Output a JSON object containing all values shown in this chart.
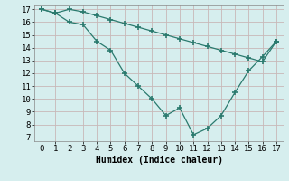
{
  "line1_x": [
    0,
    1,
    2,
    3,
    4,
    5,
    6,
    7,
    8,
    9,
    10,
    11,
    12,
    13,
    14,
    15,
    16,
    17
  ],
  "line1_y": [
    17.0,
    16.7,
    17.0,
    16.8,
    16.5,
    16.2,
    15.9,
    15.6,
    15.3,
    15.0,
    14.7,
    14.4,
    14.1,
    13.8,
    13.5,
    13.2,
    12.9,
    14.5
  ],
  "line2_x": [
    0,
    1,
    2,
    3,
    4,
    5,
    6,
    7,
    8,
    9,
    10,
    11,
    12,
    13,
    14,
    15,
    16,
    17
  ],
  "line2_y": [
    17.0,
    16.7,
    16.0,
    15.8,
    14.5,
    13.8,
    12.0,
    11.0,
    10.0,
    8.7,
    9.3,
    7.2,
    7.7,
    8.7,
    10.5,
    12.2,
    13.3,
    14.5
  ],
  "line_color": "#2a7a6e",
  "bg_color": "#d6eeee",
  "grid_color": "#c8dede",
  "xlabel": "Humidex (Indice chaleur)",
  "xlim": [
    -0.5,
    17.5
  ],
  "ylim": [
    6.7,
    17.3
  ],
  "xticks": [
    0,
    1,
    2,
    3,
    4,
    5,
    6,
    7,
    8,
    9,
    10,
    11,
    12,
    13,
    14,
    15,
    16,
    17
  ],
  "yticks": [
    7,
    8,
    9,
    10,
    11,
    12,
    13,
    14,
    15,
    16,
    17
  ],
  "xlabel_fontsize": 7,
  "tick_fontsize": 6.5,
  "marker": "+",
  "markersize": 4.5,
  "linewidth": 0.9
}
